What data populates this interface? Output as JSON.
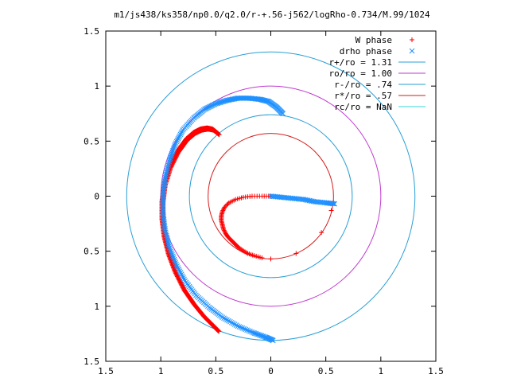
{
  "chart_data": {
    "type": "scatter",
    "title": "m1/js438/ks358/np0.0/q2.0/r-+.56-j562/logRho-0.734/M.99/1024",
    "xlim": [
      -1.5,
      1.5
    ],
    "ylim": [
      -1.5,
      1.5
    ],
    "x_ticks": [
      {
        "value": -1.5,
        "label": "1.5"
      },
      {
        "value": -1.0,
        "label": "1"
      },
      {
        "value": -0.5,
        "label": "0.5"
      },
      {
        "value": 0.0,
        "label": "0"
      },
      {
        "value": 0.5,
        "label": "0.5"
      },
      {
        "value": 1.0,
        "label": "1"
      },
      {
        "value": 1.5,
        "label": "1.5"
      }
    ],
    "y_ticks": [
      {
        "value": 1.5,
        "label": "1.5"
      },
      {
        "value": 1.0,
        "label": "1"
      },
      {
        "value": 0.5,
        "label": "0.5"
      },
      {
        "value": 0.0,
        "label": "0"
      },
      {
        "value": -0.5,
        "label": "0.5"
      },
      {
        "value": -1.0,
        "label": "1"
      },
      {
        "value": -1.5,
        "label": "1.5"
      }
    ],
    "grid": false,
    "legend_position": "top-right",
    "series": [
      {
        "name": "W phase",
        "kind": "points",
        "marker": "plus",
        "color": "#ff0000",
        "points": [
          [
            0.0,
            0.0
          ],
          [
            -0.08,
            0.0
          ],
          [
            -0.17,
            0.0
          ],
          [
            -0.25,
            -0.01
          ],
          [
            -0.32,
            -0.03
          ],
          [
            -0.38,
            -0.06
          ],
          [
            -0.42,
            -0.1
          ],
          [
            -0.44,
            -0.14
          ],
          [
            -0.45,
            -0.18
          ],
          [
            -0.45,
            -0.22
          ],
          [
            -0.44,
            -0.26
          ],
          [
            -0.43,
            -0.3
          ],
          [
            -0.41,
            -0.34
          ],
          [
            -0.39,
            -0.37
          ],
          [
            -0.36,
            -0.4
          ],
          [
            -0.33,
            -0.43
          ],
          [
            -0.3,
            -0.46
          ],
          [
            -0.26,
            -0.49
          ],
          [
            -0.21,
            -0.52
          ],
          [
            -0.15,
            -0.54
          ],
          [
            -0.08,
            -0.56
          ],
          [
            0.0,
            -0.57
          ],
          [
            0.23,
            -0.52
          ],
          [
            0.46,
            -0.33
          ],
          [
            0.55,
            -0.13
          ],
          [
            0.57,
            -0.06
          ]
        ]
      },
      {
        "name": "W phase",
        "kind": "band",
        "marker": "plus",
        "color": "#ff0000",
        "points": [
          [
            -0.48,
            0.57
          ],
          [
            -0.53,
            0.61
          ],
          [
            -0.58,
            0.62
          ],
          [
            -0.64,
            0.61
          ],
          [
            -0.7,
            0.58
          ],
          [
            -0.77,
            0.52
          ],
          [
            -0.85,
            0.41
          ],
          [
            -0.92,
            0.27
          ],
          [
            -0.97,
            0.11
          ],
          [
            -0.99,
            -0.05
          ],
          [
            -0.99,
            -0.21
          ],
          [
            -0.97,
            -0.37
          ],
          [
            -0.93,
            -0.53
          ],
          [
            -0.87,
            -0.69
          ],
          [
            -0.79,
            -0.85
          ],
          [
            -0.7,
            -0.98
          ],
          [
            -0.61,
            -1.09
          ],
          [
            -0.53,
            -1.17
          ],
          [
            -0.48,
            -1.22
          ]
        ]
      },
      {
        "name": "drho phase",
        "kind": "points",
        "marker": "cross",
        "color": "#1e90ff",
        "points": [
          [
            0.0,
            0.0
          ],
          [
            0.1,
            -0.01
          ],
          [
            0.2,
            -0.02
          ],
          [
            0.3,
            -0.03
          ],
          [
            0.4,
            -0.05
          ],
          [
            0.5,
            -0.06
          ],
          [
            0.58,
            -0.07
          ]
        ]
      },
      {
        "name": "drho phase",
        "kind": "band",
        "marker": "cross",
        "color": "#1e90ff",
        "points": [
          [
            0.11,
            0.75
          ],
          [
            0.05,
            0.81
          ],
          [
            -0.02,
            0.86
          ],
          [
            -0.1,
            0.88
          ],
          [
            -0.2,
            0.89
          ],
          [
            -0.3,
            0.89
          ],
          [
            -0.4,
            0.87
          ],
          [
            -0.5,
            0.84
          ],
          [
            -0.6,
            0.79
          ],
          [
            -0.7,
            0.71
          ],
          [
            -0.8,
            0.6
          ],
          [
            -0.87,
            0.47
          ],
          [
            -0.92,
            0.33
          ],
          [
            -0.96,
            0.17
          ],
          [
            -0.98,
            0.01
          ],
          [
            -0.98,
            -0.15
          ],
          [
            -0.96,
            -0.31
          ],
          [
            -0.92,
            -0.47
          ],
          [
            -0.86,
            -0.62
          ],
          [
            -0.78,
            -0.77
          ],
          [
            -0.68,
            -0.9
          ],
          [
            -0.56,
            -1.01
          ],
          [
            -0.44,
            -1.1
          ],
          [
            -0.3,
            -1.18
          ],
          [
            -0.16,
            -1.24
          ],
          [
            -0.05,
            -1.28
          ],
          [
            0.02,
            -1.31
          ]
        ]
      },
      {
        "name": "r+/ro = 1.31",
        "kind": "circle",
        "radius": 1.31,
        "color": "#2a9fd6"
      },
      {
        "name": "ro/ro = 1.00",
        "kind": "circle",
        "radius": 1.0,
        "color": "#c03ad0"
      },
      {
        "name": "r-/ro = .74",
        "kind": "circle",
        "radius": 0.74,
        "color": "#2a9fd6"
      },
      {
        "name": "r*/ro = .57",
        "kind": "circle",
        "radius": 0.57,
        "color": "#d81b1b"
      },
      {
        "name": "rc/ro = NaN",
        "kind": "circle",
        "radius": null,
        "color": "#33d6d6"
      }
    ],
    "legend": [
      {
        "label": "W phase",
        "marker": "plus",
        "color": "#ff0000"
      },
      {
        "label": "drho phase",
        "marker": "cross",
        "color": "#1e90ff"
      },
      {
        "label": "r+/ro = 1.31",
        "marker": "line",
        "color": "#2a9fd6"
      },
      {
        "label": "ro/ro = 1.00",
        "marker": "line",
        "color": "#c03ad0"
      },
      {
        "label": "r-/ro = .74",
        "marker": "line",
        "color": "#2a9fd6"
      },
      {
        "label": "r*/ro = .57",
        "marker": "line",
        "color": "#d81b1b"
      },
      {
        "label": "rc/ro = NaN",
        "marker": "line",
        "color": "#33d6d6"
      }
    ]
  }
}
